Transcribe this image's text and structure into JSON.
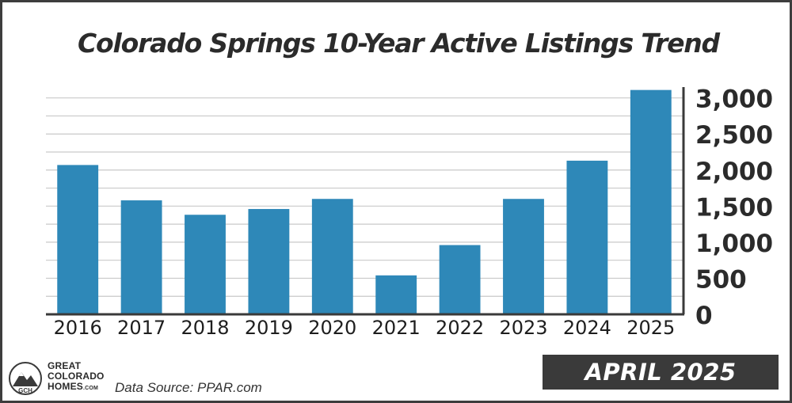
{
  "title": "Colorado Springs 10-Year Active Listings Trend",
  "chart_data": {
    "type": "bar",
    "title": "Colorado Springs 10-Year Active Listings Trend",
    "categories": [
      "2016",
      "2017",
      "2018",
      "2019",
      "2020",
      "2021",
      "2022",
      "2023",
      "2024",
      "2025"
    ],
    "values": [
      2070,
      1580,
      1380,
      1460,
      1600,
      540,
      960,
      1600,
      2130,
      3110
    ],
    "ylim": [
      0,
      3000
    ],
    "yticks": [
      0,
      500,
      1000,
      1500,
      2000,
      2500,
      3000
    ],
    "ytick_labels": [
      "0",
      "500",
      "1,000",
      "1,500",
      "2,000",
      "2,500",
      "3,000"
    ],
    "yaxis_position": "right",
    "grid": true,
    "bar_color": "#2e88b8",
    "xlabel": "",
    "ylabel": ""
  },
  "footer": {
    "logo_lines": [
      "GREAT",
      "COLORADO",
      "HOMES"
    ],
    "logo_suffix": ".COM",
    "logo_badge": "GCH",
    "source": "Data Source: PPAR.com",
    "date_label": "APRIL 2025"
  },
  "colors": {
    "bar": "#2e88b8",
    "banner": "#3a3a3a",
    "frame": "#3d3d3d",
    "grid": "#c9c9c9"
  }
}
